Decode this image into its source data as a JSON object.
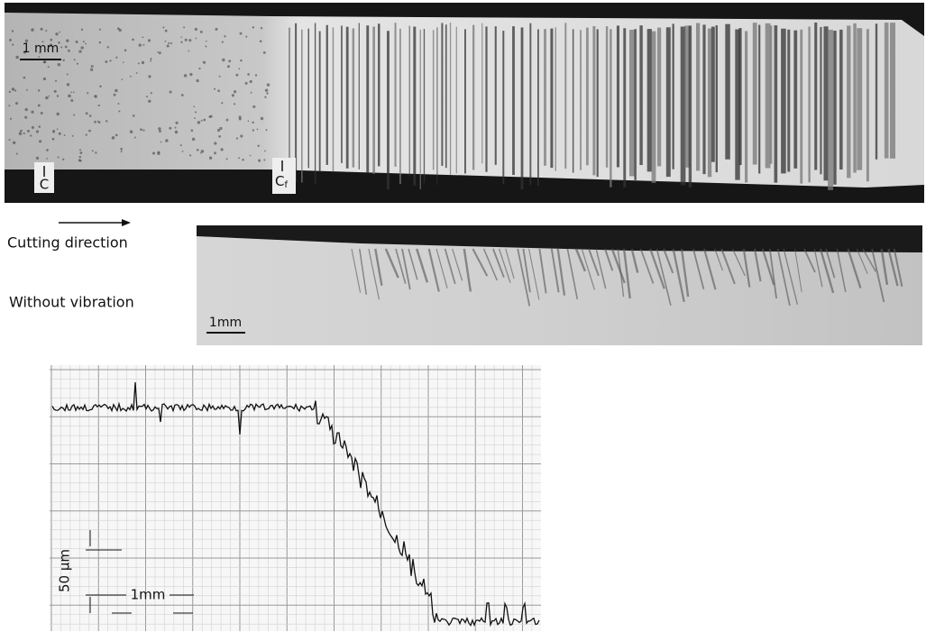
{
  "top_image": {
    "scale_label": "1 mm",
    "marker_c": "C",
    "marker_cf": "C",
    "marker_cf_sub": "f"
  },
  "caption": {
    "direction": "Cutting direction",
    "condition": "Without vibration"
  },
  "bottom_image": {
    "scale_label": "1mm"
  },
  "profile": {
    "vertical_scale": "50 µm",
    "horizontal_scale": "1mm"
  }
}
